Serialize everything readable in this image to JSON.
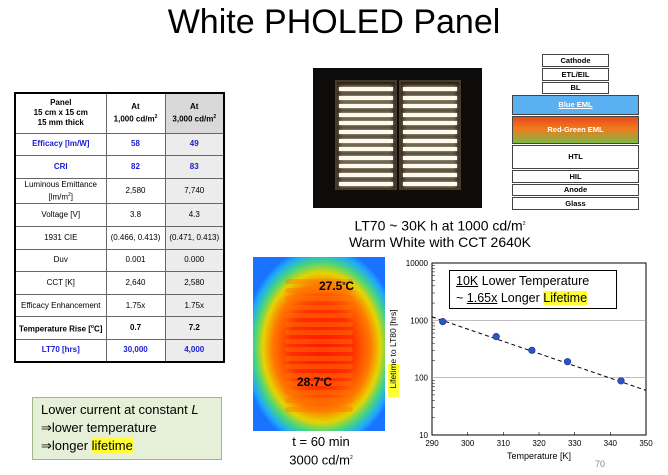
{
  "slide": {
    "title": "White PHOLED Panel",
    "page_number": "70"
  },
  "table": {
    "header": {
      "col1_line1": "Panel",
      "col1_line2": "15 cm x 15 cm",
      "col1_line3": "15 mm thick",
      "col2_line1": "At",
      "col2_line2": "1,000 cd/m",
      "col3_line1": "At",
      "col3_line2": "3,000 cd/m",
      "unit_sup": "2"
    },
    "rows": [
      {
        "label": "Efficacy [lm/W]",
        "v1": "58",
        "v2": "49"
      },
      {
        "label": "CRI",
        "v1": "82",
        "v2": "83"
      },
      {
        "label": "Luminous Emittance [lm/m",
        "label_sup": "2",
        "label_tail": "]",
        "v1": "2,580",
        "v2": "7,740"
      },
      {
        "label": "Voltage [V]",
        "v1": "3.8",
        "v2": "4.3"
      },
      {
        "label": "1931 CIE",
        "v1": "(0.466, 0.413)",
        "v2": "(0.471, 0.413)"
      },
      {
        "label": "Duv",
        "v1": "0.001",
        "v2": "0.000"
      },
      {
        "label": "CCT [K]",
        "v1": "2,640",
        "v2": "2,580"
      },
      {
        "label": "Efficacy Enhancement",
        "v1": "1.75x",
        "v2": "1.75x"
      },
      {
        "label": "Temperature Rise [",
        "label_sup": "o",
        "label_tail": "C]",
        "v1": "0.7",
        "v2": "7.2"
      },
      {
        "label": "LT70 [hrs]",
        "v1": "30,000",
        "v2": "4,000"
      }
    ]
  },
  "photo_caption": {
    "line1": "LT70 ~ 30K h at 1000 cd/m",
    "line1_sup": "2",
    "line2": "Warm White with CCT 2640K"
  },
  "stack": {
    "layers": [
      {
        "name": "Cathode",
        "color": "#ffffff"
      },
      {
        "name": "ETL/EIL",
        "color": "#ffffff"
      },
      {
        "name": "BL",
        "color": "#ffffff"
      },
      {
        "name": "Blue EML",
        "color": "#5ab0f0"
      },
      {
        "name": "Red-Green EML",
        "color": "#e8561a"
      },
      {
        "name": "HTL",
        "color": "#ffffff"
      },
      {
        "name": "HIL",
        "color": "#ffffff"
      },
      {
        "name": "Anode",
        "color": "#ffffff"
      },
      {
        "name": "Glass",
        "color": "#ffffff"
      }
    ]
  },
  "thermal": {
    "top_temp": "27.5",
    "bottom_temp": "28.7",
    "deg_sup": "o",
    "unit": "C",
    "caption_line1": "t = 60 min",
    "caption_line2": "3000 cd/m",
    "caption_sup": "2"
  },
  "note": {
    "line1_prefix": "Lower current at constant ",
    "line1_var": "L",
    "line2": "⇒lower temperature",
    "line3_prefix": "⇒longer ",
    "line3_highlight": "lifetime"
  },
  "chart_legend": {
    "line1_ul": "10K",
    "line1_rest": " Lower Temperature",
    "line2_prefix": "~ ",
    "line2_ul": "1.65x",
    "line2_mid": " Longer ",
    "line2_hl": "Lifetime"
  },
  "chart_data": {
    "type": "scatter",
    "xlabel": "Temperature [K]",
    "ylabel_highlight": "Lifetime",
    "ylabel_rest": " to LT80 [hrs]",
    "x_ticks": [
      "290",
      "300",
      "310",
      "320",
      "330",
      "340",
      "350"
    ],
    "y_ticks": [
      "10",
      "100",
      "1000",
      "10000"
    ],
    "xlim": [
      290,
      350
    ],
    "ylim": [
      10,
      10000
    ],
    "y_scale": "log",
    "grid": "horizontal",
    "points": [
      {
        "x": 293,
        "y": 950
      },
      {
        "x": 308,
        "y": 520
      },
      {
        "x": 318,
        "y": 300
      },
      {
        "x": 328,
        "y": 190
      },
      {
        "x": 343,
        "y": 88
      }
    ],
    "fit_line": {
      "style": "dashed",
      "x": [
        290,
        350
      ],
      "y": [
        1150,
        60
      ]
    },
    "marker_color": "#2e55c8"
  }
}
